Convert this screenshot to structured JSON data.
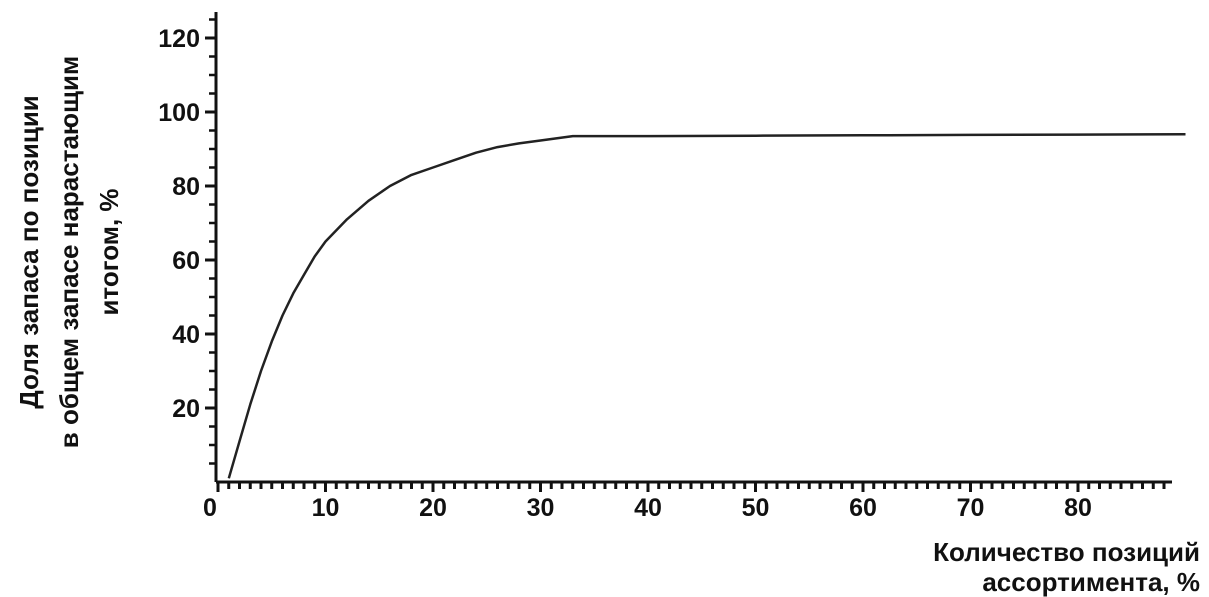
{
  "chart_data": {
    "type": "line",
    "title": "",
    "xlabel_lines": [
      "Количество позиций",
      "ассортимента, %"
    ],
    "ylabel_lines": [
      "Доля запаса по позиции",
      "в общем запасе нарастающим",
      "итогом, %"
    ],
    "xlim": [
      0,
      90
    ],
    "ylim": [
      0,
      130
    ],
    "x_ticks": [
      0,
      10,
      20,
      30,
      40,
      50,
      60,
      70,
      80
    ],
    "y_ticks": [
      20,
      40,
      60,
      80,
      100,
      120
    ],
    "x_tick_labels": [
      "0",
      "10",
      "20",
      "30",
      "40",
      "50",
      "60",
      "70",
      "80"
    ],
    "y_tick_labels": [
      "20",
      "40",
      "60",
      "80",
      "100",
      "120"
    ],
    "grid": false,
    "legend": "none",
    "series": [
      {
        "x": [
          1,
          2,
          3,
          4,
          5,
          6,
          7,
          8,
          9,
          10,
          12,
          14,
          16,
          18,
          20,
          22,
          24,
          26,
          28,
          30,
          33,
          40,
          50,
          60,
          70,
          80,
          90
        ],
        "y": [
          1,
          11,
          21,
          30,
          38,
          45,
          51,
          56,
          61,
          65,
          71,
          76,
          80,
          83,
          85,
          87,
          89,
          90.5,
          91.5,
          92.3,
          93.5,
          93.5,
          93.6,
          93.7,
          93.8,
          93.9,
          94
        ],
        "color": "#222222"
      }
    ]
  }
}
